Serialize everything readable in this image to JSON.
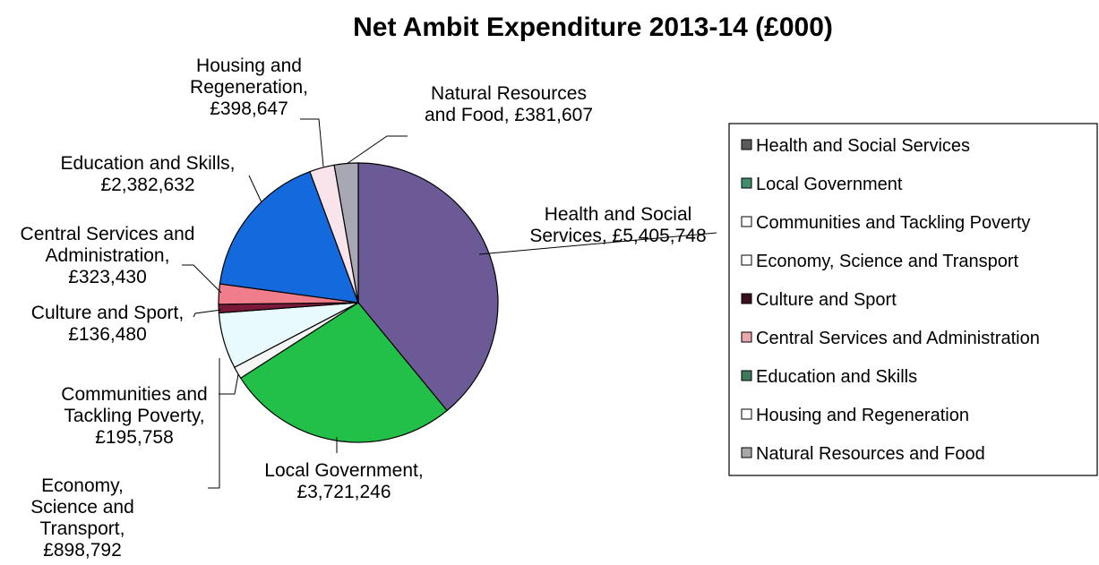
{
  "chart_data": {
    "type": "pie",
    "title": "Net Ambit Expenditure 2013-14 (£000)",
    "legend_position": "right",
    "slices": [
      {
        "name": "Health and Social Services",
        "value": 5405748,
        "label": "Health and Social Services,  £5,405,748",
        "color": "#6B5A96",
        "legend_swatch": "#5a5a5a"
      },
      {
        "name": "Local Government",
        "value": 3721246,
        "label": "Local Government, £3,721,246",
        "color": "#22C048",
        "legend_swatch": "#3f8f6a"
      },
      {
        "name": "Communities and Tackling Poverty",
        "value": 195758,
        "label": "Communities and Tackling Poverty, £195,758",
        "color": "#F5F5F5",
        "legend_swatch": "#ffffff"
      },
      {
        "name": "Economy, Science and Transport",
        "value": 898792,
        "label": "Economy, Science and Transport, £898,792",
        "color": "#E8FAFC",
        "legend_swatch": "#ffffff"
      },
      {
        "name": "Culture and Sport",
        "value": 136480,
        "label": "Culture and Sport, £136,480",
        "color": "#7A1A3A",
        "legend_swatch": "#3a1020"
      },
      {
        "name": "Central Services and Administration",
        "value": 323430,
        "label": "Central Services and Administration, £323,430",
        "color": "#F07D8C",
        "legend_swatch": "#e8a8ae"
      },
      {
        "name": "Education and Skills",
        "value": 2382632,
        "label": "Education and Skills, £2,382,632",
        "color": "#1469DC",
        "legend_swatch": "#3f7a5a"
      },
      {
        "name": "Housing and Regeneration",
        "value": 398647,
        "label": "Housing and Regeneration, £398,647",
        "color": "#F8E4EA",
        "legend_swatch": "#ffffff"
      },
      {
        "name": "Natural Resources and Food",
        "value": 381607,
        "label": "Natural Resources and Food,  £381,607",
        "color": "#A8A8B4",
        "legend_swatch": "#a8a8a8"
      }
    ]
  }
}
